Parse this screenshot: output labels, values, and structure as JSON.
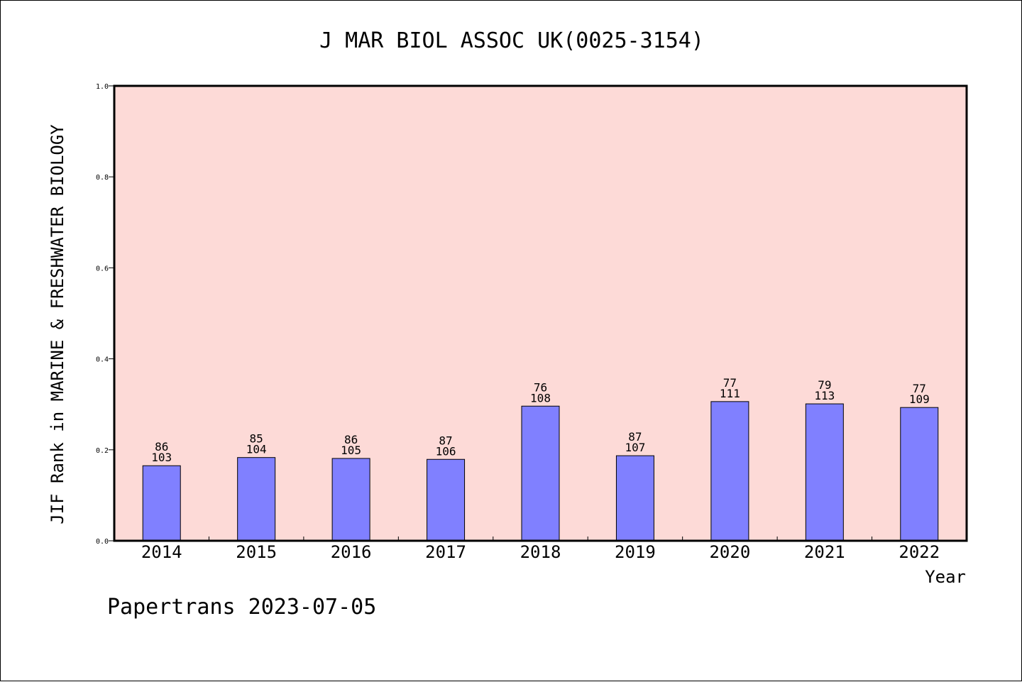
{
  "chart_data": {
    "type": "bar",
    "title": "J MAR BIOL ASSOC UK(0025-3154)",
    "xlabel": "Year",
    "ylabel": "JIF Rank in MARINE & FRESHWATER BIOLOGY",
    "ylim": [
      0,
      1.0
    ],
    "yticks": [
      "0.0",
      "0.2",
      "0.4",
      "0.6",
      "0.8",
      "1.0"
    ],
    "grid": false,
    "categories": [
      "2014",
      "2015",
      "2016",
      "2017",
      "2018",
      "2019",
      "2020",
      "2021",
      "2022"
    ],
    "values": [
      0.165,
      0.183,
      0.181,
      0.179,
      0.296,
      0.187,
      0.306,
      0.301,
      0.293
    ],
    "rank": [
      "86",
      "85",
      "86",
      "87",
      "76",
      "87",
      "77",
      "79",
      "77"
    ],
    "total": [
      "103",
      "104",
      "105",
      "106",
      "108",
      "107",
      "111",
      "113",
      "109"
    ],
    "colors": {
      "plot_background": "#FDDAD7",
      "bar": "#8080FF",
      "axis": "#000000"
    }
  },
  "footer": "Papertrans 2023-07-05"
}
